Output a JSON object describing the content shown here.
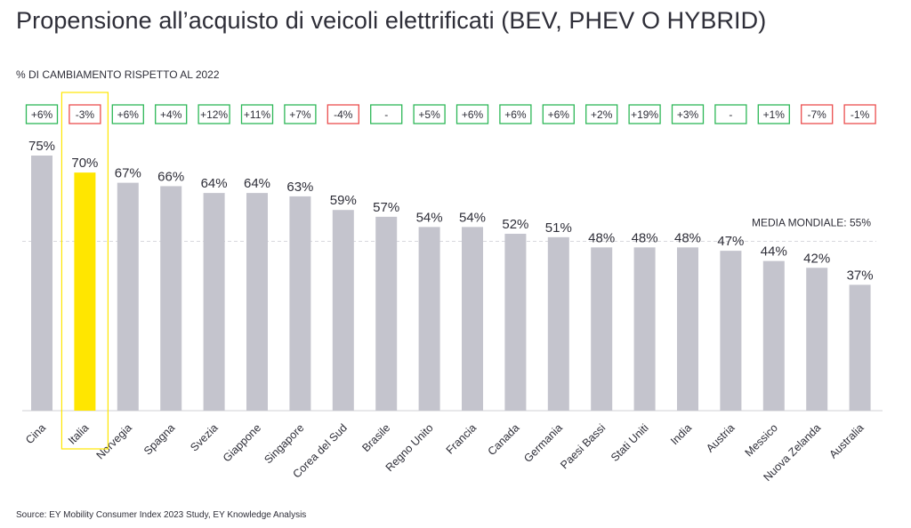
{
  "header": {
    "title": "Propensione all’acquisto di veicoli elettrificati (BEV, PHEV O HYBRID)",
    "subtitle": "% DI CAMBIAMENTO RISPETTO AL 2022",
    "source": "Source: EY Mobility Consumer Index 2023 Study, EY Knowledge Analysis"
  },
  "colors": {
    "bar": "#c4c4cd",
    "highlight_bar": "#ffe600",
    "highlight_frame": "#ffe600",
    "positive_box": "#2db757",
    "negative_box": "#ea4e4e",
    "neutral_box": "#2db757",
    "reference_line": "#d8d8de"
  },
  "chart_data": {
    "type": "bar",
    "title": "Propensione all’acquisto di veicoli elettrificati (BEV, PHEV O HYBRID)",
    "xlabel": "",
    "ylabel": "",
    "ylim": [
      0,
      75
    ],
    "grid": false,
    "categories": [
      "Cina",
      "Italia",
      "Norvegia",
      "Spagna",
      "Svezia",
      "Giappone",
      "Singapore",
      "Corea del Sud",
      "Brasile",
      "Regno Unito",
      "Francia",
      "Canada",
      "Germania",
      "Paesi Bassi",
      "Stati Uniti",
      "India",
      "Austria",
      "Messico",
      "Nuova Zelanda",
      "Australia"
    ],
    "values": [
      75,
      70,
      67,
      66,
      64,
      64,
      63,
      59,
      57,
      54,
      54,
      52,
      51,
      48,
      48,
      48,
      47,
      44,
      42,
      37
    ],
    "value_labels": [
      "75%",
      "70%",
      "67%",
      "66%",
      "64%",
      "64%",
      "63%",
      "59%",
      "57%",
      "54%",
      "54%",
      "52%",
      "51%",
      "48%",
      "48%",
      "48%",
      "47%",
      "44%",
      "42%",
      "37%"
    ],
    "change_labels": [
      "+6%",
      "-3%",
      "+6%",
      "+4%",
      "+12%",
      "+11%",
      "+7%",
      "-4%",
      "-",
      "+5%",
      "+6%",
      "+6%",
      "+6%",
      "+2%",
      "+19%",
      "+3%",
      "-",
      "+1%",
      "-7%",
      "-1%"
    ],
    "change_sign": [
      "pos",
      "neg",
      "pos",
      "pos",
      "pos",
      "pos",
      "pos",
      "neg",
      "neutral",
      "pos",
      "pos",
      "pos",
      "pos",
      "pos",
      "pos",
      "pos",
      "neutral",
      "pos",
      "neg",
      "neg"
    ],
    "highlight": "Italia",
    "reference_line": {
      "value": 55,
      "label": "MEDIA MONDIALE: 55%"
    }
  }
}
